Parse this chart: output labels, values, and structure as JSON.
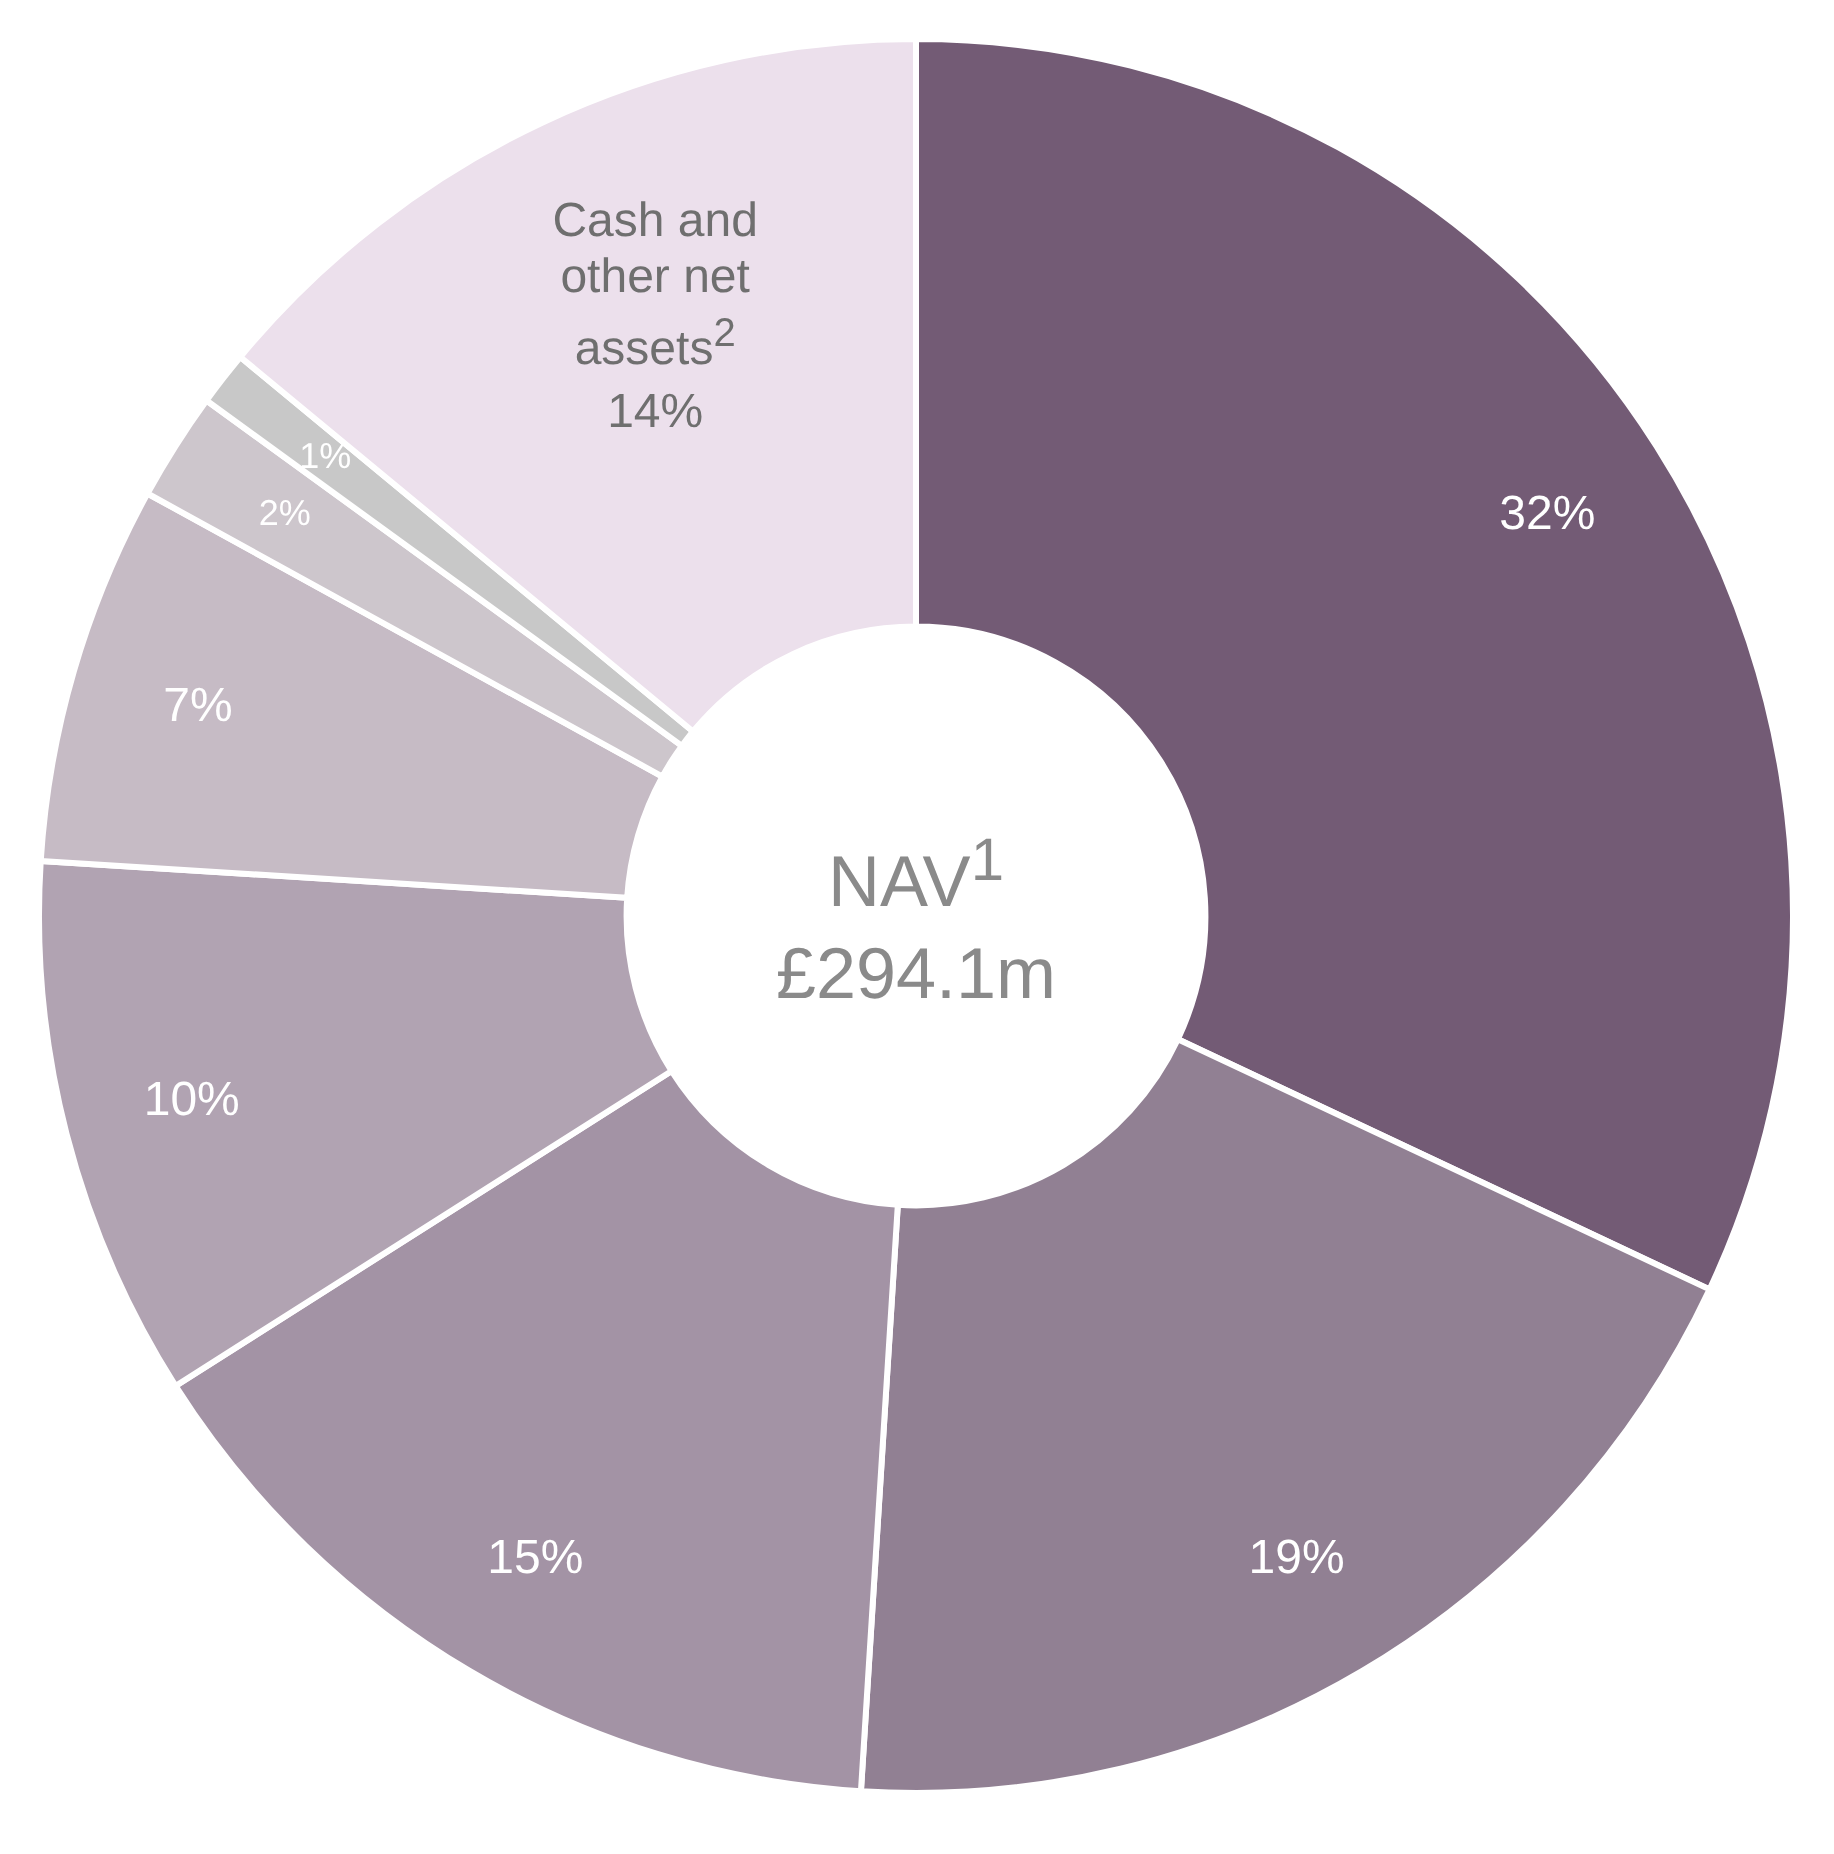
{
  "chart_data": {
    "type": "donut",
    "title": "NAV$^{1}$ £294.1m",
    "categories": [
      null,
      null,
      null,
      null,
      null,
      null,
      null,
      "Cash and other net assets$^{2}$"
    ],
    "values": [
      32,
      19,
      15,
      10,
      7,
      2,
      1,
      14
    ],
    "colors": [
      "#735b75",
      "#918093",
      "#a393a5",
      "#b1a3b2",
      "#c6bbc5",
      "#cdc6cc",
      "#c8c8c8",
      "#ece0ec"
    ],
    "value_labels": [
      "32%",
      "19%",
      "15%",
      "10%",
      "7%",
      "2%",
      "1%",
      "14%"
    ],
    "legend": false
  }
}
